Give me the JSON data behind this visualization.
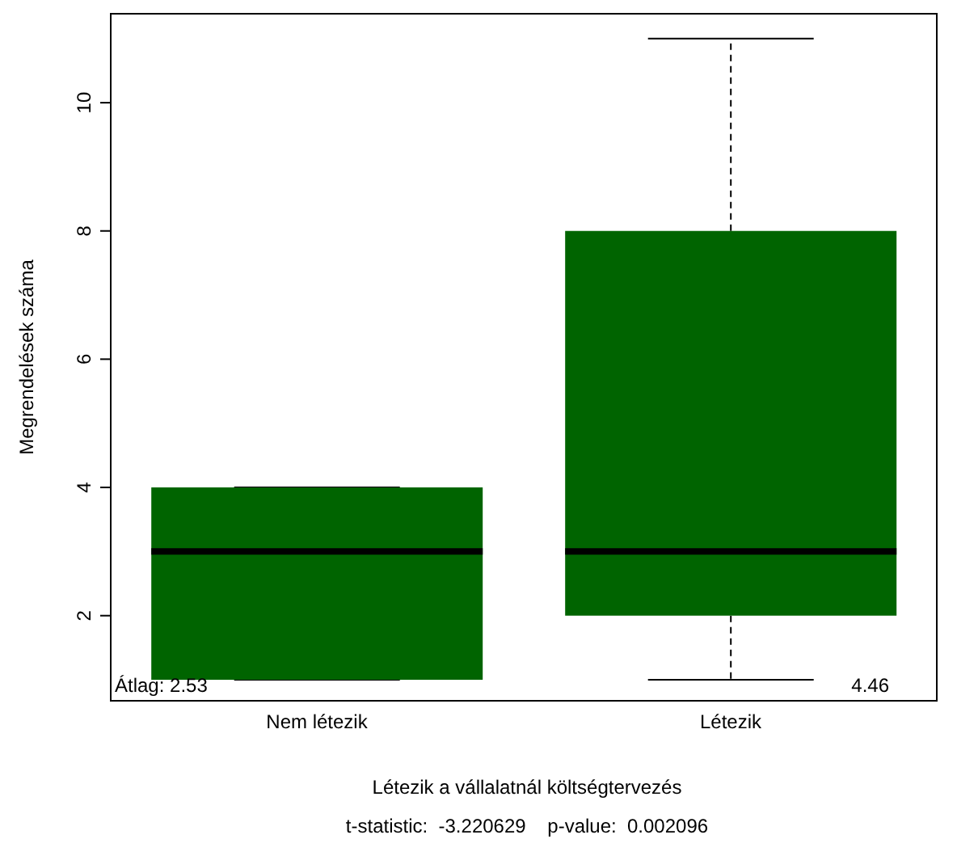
{
  "chart_data": {
    "type": "box",
    "xlabel": "Létezik a vállalatnál költségtervezés",
    "ylabel": "Megrendelések száma",
    "categories": [
      "Nem létezik",
      "Létezik"
    ],
    "boxes": [
      {
        "low": 1,
        "q1": 1,
        "median": 3,
        "q3": 4,
        "high": 4
      },
      {
        "low": 1,
        "q1": 2,
        "median": 3,
        "q3": 8,
        "high": 11
      }
    ],
    "color": "#006400",
    "ylim": [
      0.66,
      11.4
    ],
    "yticks": [
      2,
      4,
      6,
      8,
      10
    ],
    "annotations": [
      "Átlag: 2.53",
      "4.46",
      "t-statistic:  -3.220629    p-value:  0.002096"
    ]
  }
}
